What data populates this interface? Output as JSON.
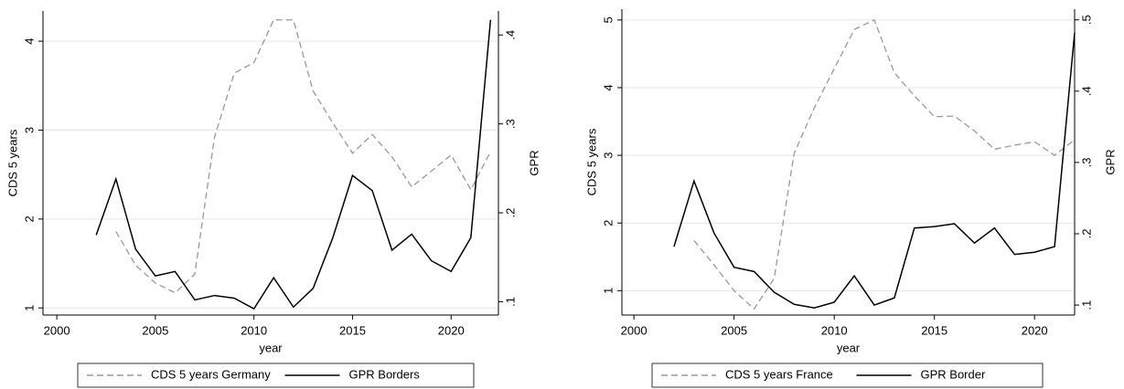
{
  "chart_data": [
    {
      "type": "line",
      "x_label": "year",
      "y_label": "CDS 5 years",
      "y2_label": "GPR",
      "x": [
        2002,
        2003,
        2004,
        2005,
        2006,
        2007,
        2008,
        2009,
        2010,
        2011,
        2012,
        2013,
        2014,
        2015,
        2016,
        2017,
        2018,
        2019,
        2020,
        2021,
        2022
      ],
      "xlim": [
        1999.3,
        2022.4
      ],
      "xticks": [
        2000,
        2005,
        2010,
        2015,
        2020
      ],
      "ylim": [
        0.92,
        4.34
      ],
      "yticks": [
        1,
        2,
        3,
        4
      ],
      "y2lim": [
        0.085,
        0.427
      ],
      "y2ticks": [
        {
          "value": 0.1,
          "label": ".1"
        },
        {
          "value": 0.2,
          "label": ".2"
        },
        {
          "value": 0.3,
          "label": ".3"
        },
        {
          "value": 0.4,
          "label": ".4"
        }
      ],
      "grid": true,
      "legend": "bottom",
      "series": [
        {
          "name": "CDS 5 years Germany",
          "color": "#999999",
          "dashed": true,
          "values": [
            null,
            1.86,
            1.48,
            1.28,
            1.17,
            1.38,
            2.92,
            3.64,
            3.76,
            4.24,
            4.24,
            3.44,
            3.08,
            2.74,
            2.95,
            2.7,
            2.36,
            2.54,
            2.72,
            2.33,
            2.76
          ]
        },
        {
          "name": "GPR Borders",
          "color": "#000000",
          "dashed": false,
          "axis": "y2",
          "values": [
            0.175,
            0.238,
            0.159,
            0.129,
            0.134,
            0.102,
            0.107,
            0.104,
            0.092,
            0.127,
            0.094,
            0.115,
            0.172,
            0.242,
            0.225,
            0.158,
            0.176,
            0.146,
            0.134,
            0.172,
            0.417
          ]
        }
      ]
    },
    {
      "type": "line",
      "x_label": "year",
      "y_label": "CDS 5 years",
      "y2_label": "GPR",
      "x": [
        2002,
        2003,
        2004,
        2005,
        2006,
        2007,
        2008,
        2009,
        2010,
        2011,
        2012,
        2013,
        2014,
        2015,
        2016,
        2017,
        2018,
        2019,
        2020,
        2021,
        2022
      ],
      "xlim": [
        1999.4,
        2022.0
      ],
      "xticks": [
        2000,
        2005,
        2010,
        2015,
        2020
      ],
      "ylim": [
        0.64,
        5.16
      ],
      "yticks": [
        1,
        2,
        3,
        4,
        5
      ],
      "y2lim": [
        0.086,
        0.515
      ],
      "y2ticks": [
        {
          "value": 0.1,
          "label": ".1"
        },
        {
          "value": 0.2,
          "label": ".2"
        },
        {
          "value": 0.3,
          "label": ".3"
        },
        {
          "value": 0.4,
          "label": ".4"
        },
        {
          "value": 0.5,
          "label": ".5"
        }
      ],
      "grid": true,
      "legend": "bottom",
      "series": [
        {
          "name": "CDS 5 years France",
          "color": "#999999",
          "dashed": true,
          "values": [
            null,
            1.74,
            1.38,
            1.0,
            0.73,
            1.18,
            3.03,
            3.7,
            4.28,
            4.86,
            5.0,
            4.22,
            3.88,
            3.57,
            3.58,
            3.36,
            3.09,
            3.15,
            3.2,
            3.0,
            3.23
          ]
        },
        {
          "name": "GPR Border",
          "color": "#000000",
          "dashed": false,
          "axis": "y2",
          "values": [
            0.182,
            0.274,
            0.201,
            0.153,
            0.147,
            0.118,
            0.101,
            0.096,
            0.104,
            0.141,
            0.1,
            0.11,
            0.208,
            0.21,
            0.214,
            0.187,
            0.208,
            0.171,
            0.174,
            0.182,
            0.482
          ]
        }
      ]
    }
  ]
}
